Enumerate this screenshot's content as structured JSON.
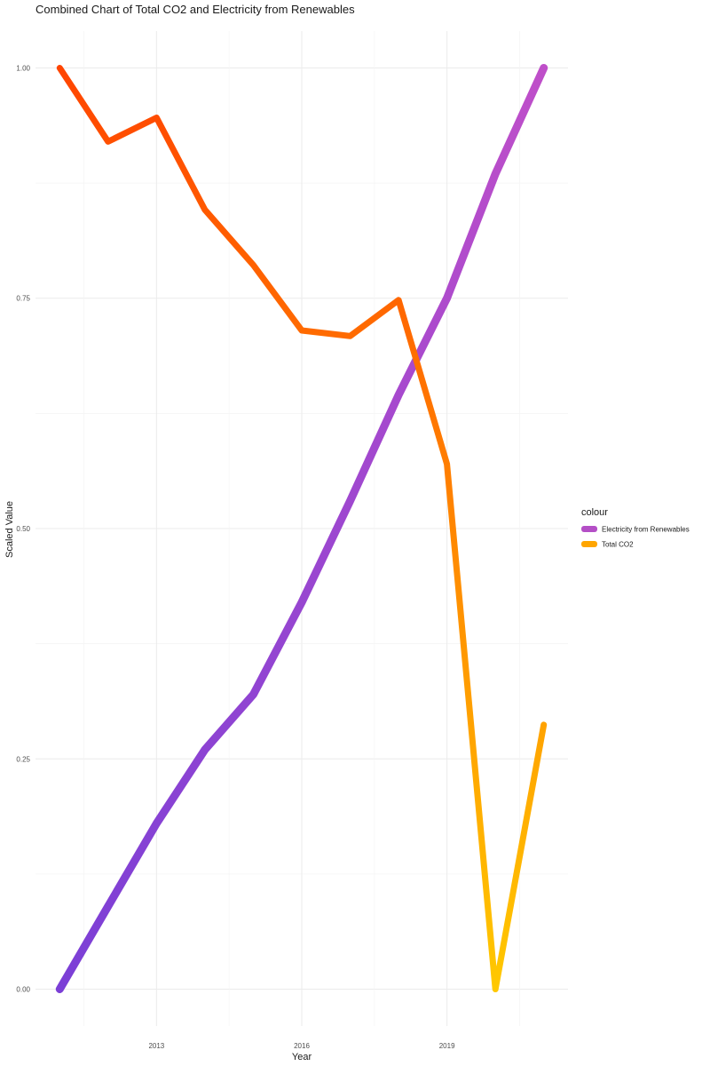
{
  "chart_data": {
    "type": "line",
    "title": "Combined Chart of Total CO2 and Electricity from Renewables",
    "xlabel": "Year",
    "ylabel": "Scaled Value",
    "x": [
      2011,
      2012,
      2013,
      2014,
      2015,
      2016,
      2017,
      2018,
      2019,
      2020,
      2021
    ],
    "xlim": [
      2010.5,
      2021.5
    ],
    "ylim": [
      -0.04,
      1.04
    ],
    "x_ticks": [
      2013,
      2016,
      2019
    ],
    "x_tick_labels": [
      "2013",
      "2016",
      "2019"
    ],
    "y_ticks": [
      0.0,
      0.25,
      0.5,
      0.75,
      1.0
    ],
    "y_tick_labels": [
      "0.00",
      "0.25",
      "0.50",
      "0.75",
      "1.00"
    ],
    "grid": true,
    "legend": {
      "title": "colour",
      "placement": "right",
      "entries": [
        "Electricity from Renewables",
        "Total CO2"
      ]
    },
    "series": [
      {
        "name": "Electricity from Renewables",
        "values": [
          0.0,
          0.09,
          0.18,
          0.26,
          0.32,
          0.42,
          0.53,
          0.645,
          0.75,
          0.885,
          1.0
        ],
        "color_start": "#7b3fd6",
        "color_end": "#bf4fc9",
        "legend_color": "#b44fc6"
      },
      {
        "name": "Total CO2",
        "values": [
          1.0,
          0.92,
          0.946,
          0.846,
          0.786,
          0.715,
          0.709,
          0.748,
          0.57,
          0.0,
          0.287
        ],
        "color_start": "#ff4500",
        "color_end": "#ffc800",
        "legend_color": "#ffa500"
      }
    ]
  }
}
